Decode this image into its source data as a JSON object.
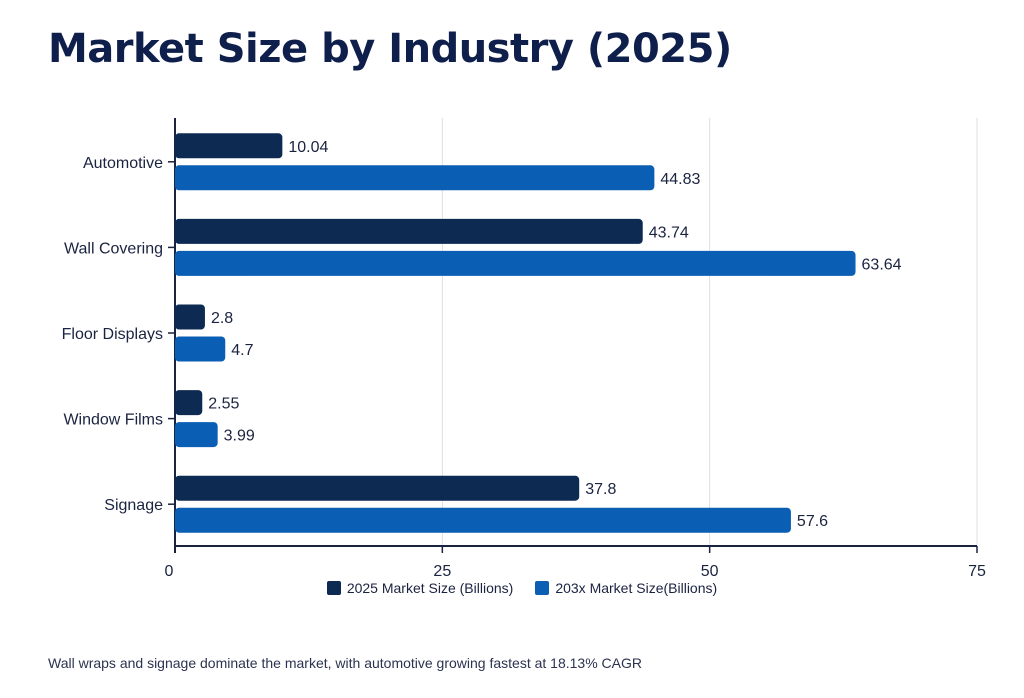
{
  "chart_data": {
    "type": "bar",
    "orientation": "horizontal",
    "title": "Market Size by Industry (2025)",
    "categories": [
      "Automotive",
      "Wall Covering",
      "Floor Displays",
      "Window Films",
      "Signage"
    ],
    "series": [
      {
        "name": "2025 Market Size (Billions)",
        "values": [
          10.04,
          43.74,
          2.8,
          2.55,
          37.8
        ],
        "labels": [
          "10.04",
          "43.74",
          "2.8",
          "2.55",
          "37.8"
        ],
        "color": "#0d2a52"
      },
      {
        "name": "203x Market Size(Billions)",
        "values": [
          44.83,
          63.64,
          4.7,
          3.99,
          57.6
        ],
        "labels": [
          "44.83",
          "63.64",
          "4.7",
          "3.99",
          "57.6"
        ],
        "color": "#0a5fb4"
      }
    ],
    "xlim": [
      0,
      75
    ],
    "xticks": [
      0,
      25,
      50,
      75
    ],
    "grid": true,
    "legend": "bottom",
    "caption": "Wall wraps and signage dominate the market, with automotive growing fastest at 18.13% CAGR"
  }
}
